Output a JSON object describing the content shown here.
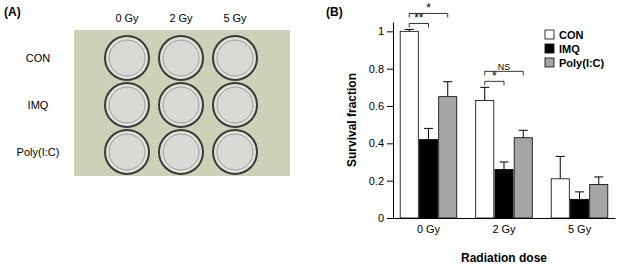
{
  "chart_data": {
    "type": "bar",
    "panel_label": "(B)",
    "categories": [
      "0 Gy",
      "2 Gy",
      "5 Gy"
    ],
    "series": [
      {
        "name": "CON",
        "color": "#ffffff",
        "values": [
          1.0,
          0.63,
          0.21
        ],
        "errors": [
          0.01,
          0.07,
          0.12
        ]
      },
      {
        "name": "IMQ",
        "color": "#000000",
        "values": [
          0.42,
          0.26,
          0.1
        ],
        "errors": [
          0.06,
          0.04,
          0.04
        ]
      },
      {
        "name": "Poly(I:C)",
        "color": "#a6a6a6",
        "values": [
          0.65,
          0.43,
          0.18
        ],
        "errors": [
          0.08,
          0.04,
          0.04
        ]
      }
    ],
    "x_label": "Radiation dose",
    "y_label": "Survival fraction",
    "ylim": [
      0,
      1.05
    ],
    "yticks": [
      0,
      0.2,
      0.4,
      0.6,
      0.8,
      1
    ],
    "grid": false,
    "legend": "upper right",
    "annotations": [
      {
        "text": "**",
        "category": "0 Gy",
        "between": [
          "CON",
          "IMQ"
        ]
      },
      {
        "text": "*",
        "category": "0 Gy",
        "between": [
          "CON",
          "Poly(I:C)"
        ]
      },
      {
        "text": "*",
        "category": "2 Gy",
        "between": [
          "CON",
          "IMQ"
        ]
      },
      {
        "text": "NS",
        "category": "2 Gy",
        "between": [
          "CON",
          "Poly(I:C)"
        ]
      }
    ]
  },
  "panel_a": {
    "panel_label": "(A)",
    "columns": [
      "0 Gy",
      "2 Gy",
      "5 Gy"
    ],
    "rows": [
      "CON",
      "IMQ",
      "Poly(I:C)"
    ]
  }
}
